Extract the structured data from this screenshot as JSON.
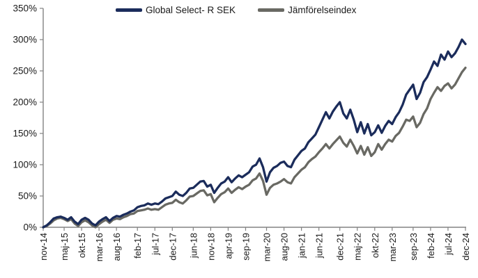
{
  "chart_data": {
    "type": "line",
    "title": "",
    "grid": false,
    "legend_position": "top",
    "y_unit": "%",
    "ylim": [
      0,
      350
    ],
    "y_ticks": [
      "0%",
      "50%",
      "100%",
      "150%",
      "200%",
      "250%",
      "300%",
      "350%"
    ],
    "x_tick_labels": [
      "nov-14",
      "maj-15",
      "okt-15",
      "mar-16",
      "aug-16",
      "feb-17",
      "jul-17",
      "dec-17",
      "jun-18",
      "nov-18",
      "apr-19",
      "sep-19",
      "mar-20",
      "aug-20",
      "jan-21",
      "jun-21",
      "dec-21",
      "maj-22",
      "okt-22",
      "mar-23",
      "sep-23",
      "feb-24",
      "jul-24",
      "dec-24"
    ],
    "x_tick_month_index": [
      0,
      6,
      11,
      16,
      21,
      27,
      32,
      37,
      43,
      48,
      53,
      58,
      64,
      69,
      74,
      79,
      85,
      90,
      95,
      100,
      106,
      111,
      116,
      121
    ],
    "months_total": 121,
    "x_start_month": "nov-14",
    "x_end_month": "dec-24",
    "axis_color": "#828282",
    "label_color": "#1a1a1a",
    "series": [
      {
        "name": "Global Select- R SEK",
        "color": "#1B2C5B",
        "values": [
          0,
          3,
          8,
          14,
          16,
          17,
          15,
          12,
          16,
          9,
          5,
          12,
          15,
          12,
          6,
          3,
          9,
          13,
          16,
          10,
          15,
          18,
          17,
          20,
          22,
          25,
          27,
          32,
          34,
          35,
          38,
          36,
          38,
          37,
          41,
          46,
          48,
          50,
          57,
          52,
          50,
          55,
          62,
          63,
          68,
          73,
          74,
          65,
          68,
          55,
          63,
          70,
          73,
          80,
          72,
          78,
          83,
          80,
          84,
          88,
          97,
          100,
          110,
          96,
          73,
          88,
          95,
          98,
          103,
          105,
          98,
          96,
          108,
          115,
          122,
          126,
          136,
          142,
          148,
          160,
          172,
          184,
          174,
          185,
          193,
          200,
          182,
          174,
          188,
          172,
          152,
          168,
          150,
          165,
          147,
          152,
          163,
          151,
          162,
          170,
          165,
          176,
          184,
          196,
          212,
          220,
          228,
          205,
          215,
          232,
          240,
          252,
          265,
          258,
          276,
          268,
          281,
          272,
          278,
          288,
          300,
          293
        ]
      },
      {
        "name": "Jämförelseindex",
        "color": "#696963",
        "values": [
          0,
          2,
          6,
          11,
          14,
          15,
          13,
          10,
          13,
          6,
          2,
          8,
          11,
          8,
          3,
          0,
          5,
          9,
          12,
          7,
          12,
          14,
          13,
          16,
          18,
          21,
          22,
          26,
          27,
          28,
          30,
          28,
          29,
          28,
          32,
          36,
          38,
          39,
          44,
          40,
          38,
          43,
          49,
          50,
          54,
          58,
          59,
          51,
          53,
          40,
          47,
          53,
          56,
          62,
          55,
          60,
          64,
          61,
          65,
          68,
          75,
          78,
          86,
          74,
          52,
          63,
          68,
          70,
          73,
          77,
          72,
          70,
          80,
          86,
          92,
          96,
          104,
          109,
          113,
          120,
          126,
          133,
          126,
          133,
          139,
          145,
          135,
          129,
          140,
          130,
          118,
          130,
          116,
          128,
          114,
          120,
          133,
          124,
          133,
          140,
          137,
          146,
          151,
          161,
          172,
          170,
          177,
          160,
          167,
          181,
          190,
          205,
          215,
          224,
          218,
          226,
          230,
          222,
          228,
          238,
          248,
          255
        ]
      }
    ]
  }
}
